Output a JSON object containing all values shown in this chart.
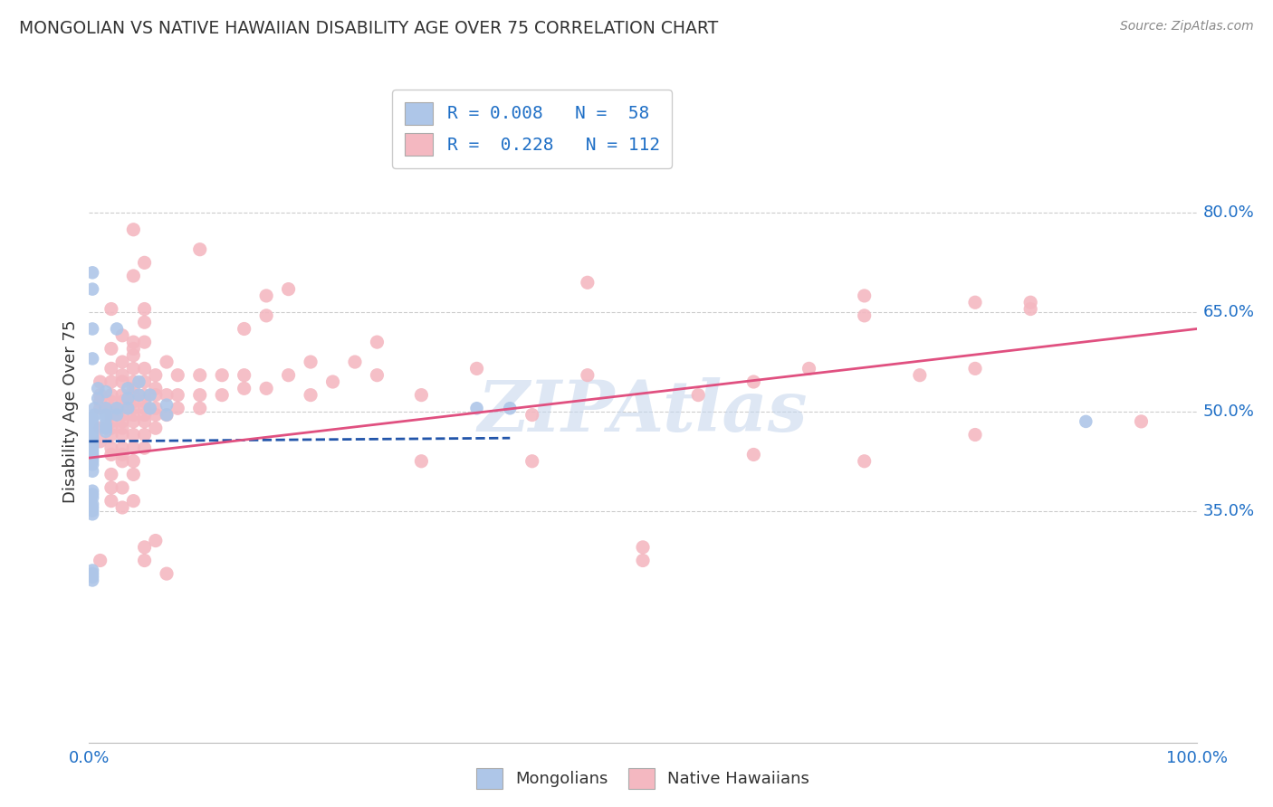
{
  "title": "MONGOLIAN VS NATIVE HAWAIIAN DISABILITY AGE OVER 75 CORRELATION CHART",
  "source": "Source: ZipAtlas.com",
  "ylabel": "Disability Age Over 75",
  "xlim": [
    0.0,
    1.0
  ],
  "ylim": [
    0.0,
    1.0
  ],
  "xtick_vals": [
    0.0,
    0.2,
    0.4,
    0.6,
    0.8,
    1.0
  ],
  "xtick_labels": [
    "0.0%",
    "",
    "",
    "",
    "",
    "100.0%"
  ],
  "ytick_vals_right": [
    0.8,
    0.65,
    0.5,
    0.35
  ],
  "ytick_labels_right": [
    "80.0%",
    "65.0%",
    "50.0%",
    "35.0%"
  ],
  "legend_r_color": "#1f6fc6",
  "mongolian_color": "#aec6e8",
  "hawaiian_color": "#f4b8c1",
  "mongolian_line_color": "#2255aa",
  "hawaiian_line_color": "#e05080",
  "background_color": "#ffffff",
  "watermark": "ZIPAtlas",
  "mongolian_line": [
    [
      0.0,
      0.455
    ],
    [
      0.38,
      0.46
    ]
  ],
  "hawaiian_line": [
    [
      0.0,
      0.43
    ],
    [
      1.0,
      0.625
    ]
  ],
  "mongolian_scatter": [
    [
      0.003,
      0.71
    ],
    [
      0.003,
      0.685
    ],
    [
      0.003,
      0.625
    ],
    [
      0.003,
      0.58
    ],
    [
      0.008,
      0.535
    ],
    [
      0.008,
      0.52
    ],
    [
      0.005,
      0.505
    ],
    [
      0.005,
      0.495
    ],
    [
      0.003,
      0.49
    ],
    [
      0.003,
      0.485
    ],
    [
      0.003,
      0.48
    ],
    [
      0.003,
      0.475
    ],
    [
      0.003,
      0.47
    ],
    [
      0.003,
      0.465
    ],
    [
      0.003,
      0.46
    ],
    [
      0.003,
      0.455
    ],
    [
      0.003,
      0.45
    ],
    [
      0.003,
      0.445
    ],
    [
      0.003,
      0.44
    ],
    [
      0.003,
      0.435
    ],
    [
      0.003,
      0.43
    ],
    [
      0.003,
      0.425
    ],
    [
      0.003,
      0.42
    ],
    [
      0.003,
      0.41
    ],
    [
      0.003,
      0.38
    ],
    [
      0.003,
      0.375
    ],
    [
      0.003,
      0.37
    ],
    [
      0.003,
      0.36
    ],
    [
      0.003,
      0.355
    ],
    [
      0.003,
      0.35
    ],
    [
      0.003,
      0.345
    ],
    [
      0.003,
      0.26
    ],
    [
      0.003,
      0.255
    ],
    [
      0.003,
      0.25
    ],
    [
      0.003,
      0.245
    ],
    [
      0.015,
      0.53
    ],
    [
      0.015,
      0.505
    ],
    [
      0.015,
      0.495
    ],
    [
      0.015,
      0.49
    ],
    [
      0.015,
      0.48
    ],
    [
      0.015,
      0.475
    ],
    [
      0.015,
      0.47
    ],
    [
      0.025,
      0.625
    ],
    [
      0.025,
      0.505
    ],
    [
      0.025,
      0.495
    ],
    [
      0.035,
      0.535
    ],
    [
      0.035,
      0.52
    ],
    [
      0.035,
      0.505
    ],
    [
      0.045,
      0.545
    ],
    [
      0.045,
      0.525
    ],
    [
      0.055,
      0.525
    ],
    [
      0.055,
      0.505
    ],
    [
      0.07,
      0.51
    ],
    [
      0.07,
      0.495
    ],
    [
      0.35,
      0.505
    ],
    [
      0.38,
      0.505
    ],
    [
      0.9,
      0.485
    ]
  ],
  "hawaiian_scatter": [
    [
      0.01,
      0.545
    ],
    [
      0.01,
      0.525
    ],
    [
      0.01,
      0.515
    ],
    [
      0.01,
      0.505
    ],
    [
      0.01,
      0.475
    ],
    [
      0.01,
      0.455
    ],
    [
      0.01,
      0.275
    ],
    [
      0.02,
      0.655
    ],
    [
      0.02,
      0.595
    ],
    [
      0.02,
      0.565
    ],
    [
      0.02,
      0.545
    ],
    [
      0.02,
      0.525
    ],
    [
      0.02,
      0.515
    ],
    [
      0.02,
      0.505
    ],
    [
      0.02,
      0.495
    ],
    [
      0.02,
      0.485
    ],
    [
      0.02,
      0.475
    ],
    [
      0.02,
      0.465
    ],
    [
      0.02,
      0.445
    ],
    [
      0.02,
      0.435
    ],
    [
      0.02,
      0.405
    ],
    [
      0.02,
      0.385
    ],
    [
      0.02,
      0.365
    ],
    [
      0.03,
      0.615
    ],
    [
      0.03,
      0.575
    ],
    [
      0.03,
      0.555
    ],
    [
      0.03,
      0.545
    ],
    [
      0.03,
      0.525
    ],
    [
      0.03,
      0.515
    ],
    [
      0.03,
      0.505
    ],
    [
      0.03,
      0.495
    ],
    [
      0.03,
      0.485
    ],
    [
      0.03,
      0.475
    ],
    [
      0.03,
      0.465
    ],
    [
      0.03,
      0.445
    ],
    [
      0.03,
      0.435
    ],
    [
      0.03,
      0.425
    ],
    [
      0.03,
      0.385
    ],
    [
      0.03,
      0.355
    ],
    [
      0.04,
      0.775
    ],
    [
      0.04,
      0.705
    ],
    [
      0.04,
      0.605
    ],
    [
      0.04,
      0.595
    ],
    [
      0.04,
      0.585
    ],
    [
      0.04,
      0.565
    ],
    [
      0.04,
      0.545
    ],
    [
      0.04,
      0.535
    ],
    [
      0.04,
      0.525
    ],
    [
      0.04,
      0.515
    ],
    [
      0.04,
      0.505
    ],
    [
      0.04,
      0.495
    ],
    [
      0.04,
      0.485
    ],
    [
      0.04,
      0.465
    ],
    [
      0.04,
      0.445
    ],
    [
      0.04,
      0.425
    ],
    [
      0.04,
      0.405
    ],
    [
      0.04,
      0.365
    ],
    [
      0.05,
      0.725
    ],
    [
      0.05,
      0.655
    ],
    [
      0.05,
      0.635
    ],
    [
      0.05,
      0.605
    ],
    [
      0.05,
      0.565
    ],
    [
      0.05,
      0.545
    ],
    [
      0.05,
      0.525
    ],
    [
      0.05,
      0.515
    ],
    [
      0.05,
      0.505
    ],
    [
      0.05,
      0.495
    ],
    [
      0.05,
      0.485
    ],
    [
      0.05,
      0.465
    ],
    [
      0.05,
      0.445
    ],
    [
      0.05,
      0.295
    ],
    [
      0.05,
      0.275
    ],
    [
      0.06,
      0.555
    ],
    [
      0.06,
      0.535
    ],
    [
      0.06,
      0.525
    ],
    [
      0.06,
      0.505
    ],
    [
      0.06,
      0.495
    ],
    [
      0.06,
      0.475
    ],
    [
      0.06,
      0.305
    ],
    [
      0.07,
      0.575
    ],
    [
      0.07,
      0.525
    ],
    [
      0.07,
      0.495
    ],
    [
      0.07,
      0.255
    ],
    [
      0.08,
      0.555
    ],
    [
      0.08,
      0.525
    ],
    [
      0.08,
      0.505
    ],
    [
      0.1,
      0.745
    ],
    [
      0.1,
      0.555
    ],
    [
      0.1,
      0.525
    ],
    [
      0.1,
      0.505
    ],
    [
      0.12,
      0.555
    ],
    [
      0.12,
      0.525
    ],
    [
      0.14,
      0.625
    ],
    [
      0.14,
      0.555
    ],
    [
      0.14,
      0.535
    ],
    [
      0.16,
      0.535
    ],
    [
      0.16,
      0.675
    ],
    [
      0.16,
      0.645
    ],
    [
      0.18,
      0.685
    ],
    [
      0.18,
      0.555
    ],
    [
      0.2,
      0.575
    ],
    [
      0.2,
      0.525
    ],
    [
      0.22,
      0.545
    ],
    [
      0.24,
      0.575
    ],
    [
      0.26,
      0.605
    ],
    [
      0.26,
      0.555
    ],
    [
      0.3,
      0.525
    ],
    [
      0.3,
      0.425
    ],
    [
      0.35,
      0.565
    ],
    [
      0.4,
      0.495
    ],
    [
      0.4,
      0.425
    ],
    [
      0.45,
      0.695
    ],
    [
      0.45,
      0.555
    ],
    [
      0.5,
      0.295
    ],
    [
      0.5,
      0.275
    ],
    [
      0.55,
      0.525
    ],
    [
      0.6,
      0.435
    ],
    [
      0.6,
      0.545
    ],
    [
      0.65,
      0.565
    ],
    [
      0.7,
      0.675
    ],
    [
      0.7,
      0.645
    ],
    [
      0.7,
      0.425
    ],
    [
      0.75,
      0.555
    ],
    [
      0.8,
      0.565
    ],
    [
      0.8,
      0.465
    ],
    [
      0.8,
      0.665
    ],
    [
      0.85,
      0.665
    ],
    [
      0.85,
      0.655
    ],
    [
      0.95,
      0.485
    ]
  ]
}
